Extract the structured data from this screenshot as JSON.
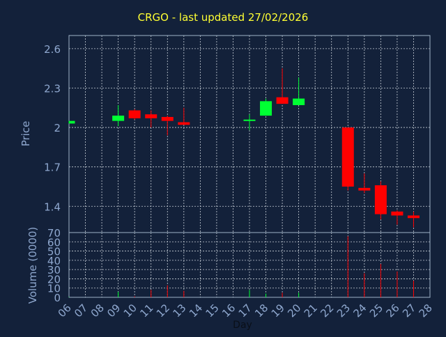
{
  "colors": {
    "background": "#13213a",
    "plot_border": "#9fb3c8",
    "grid": "#c8d0d8",
    "title": "#ffff33",
    "axis_text": "#8fa8cf",
    "up": "#00ff33",
    "down": "#ff0000"
  },
  "chart_data": {
    "type": "candlestick",
    "title": "CRGO - last updated 27/02/2026",
    "xlabel": "Day",
    "price_panel": {
      "ylabel": "Price",
      "ylim": [
        1.2,
        2.7
      ],
      "y_ticks": [
        1.4,
        1.7,
        2.0,
        2.3,
        2.6
      ],
      "y_tick_labels": [
        "1.4",
        "1.7",
        "2",
        "2.3",
        "2.6"
      ],
      "grid": true
    },
    "volume_panel": {
      "ylabel": "Volume (0000)",
      "ylim": [
        0,
        70
      ],
      "y_ticks": [
        0,
        10,
        20,
        30,
        40,
        50,
        60,
        70
      ],
      "y_tick_labels": [
        "0",
        "10",
        "20",
        "30",
        "40",
        "50",
        "60",
        "70"
      ],
      "grid": true
    },
    "x_ticks": [
      "06",
      "07",
      "08",
      "09",
      "10",
      "11",
      "12",
      "13",
      "14",
      "15",
      "16",
      "17",
      "18",
      "19",
      "20",
      "21",
      "22",
      "23",
      "24",
      "25",
      "26",
      "27",
      "28"
    ],
    "candles": [
      {
        "day": "06",
        "open": 2.03,
        "high": 2.05,
        "low": 2.03,
        "close": 2.05,
        "volume": 0.5
      },
      {
        "day": "09",
        "open": 2.05,
        "high": 2.17,
        "low": 2.01,
        "close": 2.09,
        "volume": 6
      },
      {
        "day": "10",
        "open": 2.13,
        "high": 2.14,
        "low": 2.06,
        "close": 2.07,
        "volume": 1
      },
      {
        "day": "11",
        "open": 2.1,
        "high": 2.13,
        "low": 2.0,
        "close": 2.07,
        "volume": 8
      },
      {
        "day": "12",
        "open": 2.08,
        "high": 2.09,
        "low": 1.94,
        "close": 2.05,
        "volume": 13
      },
      {
        "day": "13",
        "open": 2.04,
        "high": 2.15,
        "low": 2.02,
        "close": 2.02,
        "volume": 7
      },
      {
        "day": "17",
        "open": 2.05,
        "high": 2.1,
        "low": 1.98,
        "close": 2.06,
        "volume": 8
      },
      {
        "day": "18",
        "open": 2.09,
        "high": 2.22,
        "low": 2.09,
        "close": 2.2,
        "volume": 4
      },
      {
        "day": "19",
        "open": 2.23,
        "high": 2.45,
        "low": 2.18,
        "close": 2.18,
        "volume": 5
      },
      {
        "day": "20",
        "open": 2.17,
        "high": 2.38,
        "low": 2.17,
        "close": 2.22,
        "volume": 5
      },
      {
        "day": "23",
        "open": 2.0,
        "high": 2.0,
        "low": 1.52,
        "close": 1.55,
        "volume": 66
      },
      {
        "day": "24",
        "open": 1.54,
        "high": 1.65,
        "low": 1.5,
        "close": 1.52,
        "volume": 26
      },
      {
        "day": "25",
        "open": 1.56,
        "high": 1.59,
        "low": 1.3,
        "close": 1.34,
        "volume": 36
      },
      {
        "day": "26",
        "open": 1.36,
        "high": 1.37,
        "low": 1.26,
        "close": 1.33,
        "volume": 28
      },
      {
        "day": "27",
        "open": 1.33,
        "high": 1.36,
        "low": 1.24,
        "close": 1.31,
        "volume": 18
      }
    ]
  }
}
